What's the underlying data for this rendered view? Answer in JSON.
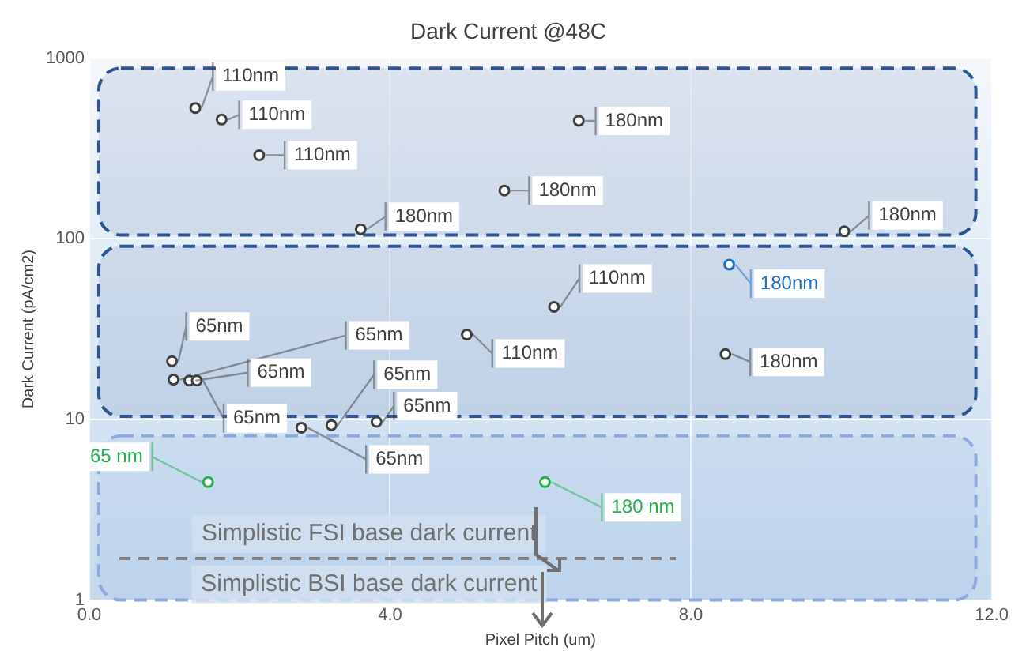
{
  "chart_data": {
    "type": "scatter",
    "title": "Dark Current @48C",
    "xlabel": "Pixel Pitch (um)",
    "ylabel": "Dark Current (pA/cm2)",
    "xlim": [
      0,
      12
    ],
    "xticks": [
      {
        "value": 0,
        "label": "0.0"
      },
      {
        "value": 4,
        "label": "4.0"
      },
      {
        "value": 8,
        "label": "8.0"
      },
      {
        "value": 12,
        "label": "12.0"
      }
    ],
    "ylim": [
      1,
      1000
    ],
    "yticks": [
      1,
      10,
      100,
      1000
    ],
    "log": "y",
    "grid": true,
    "legend": false,
    "series": [
      {
        "color": "#404040",
        "marker": "circle",
        "x": [
          1.41,
          1.76,
          2.26,
          6.18,
          5.02,
          3.61,
          6.51,
          5.52,
          10.04,
          8.46,
          1.1,
          1.12,
          1.33,
          1.43,
          2.82,
          3.22,
          3.82
        ],
        "values": [
          530,
          457,
          290,
          42,
          29.5,
          113,
          450,
          185,
          110,
          23,
          21,
          16.6,
          16.4,
          16.4,
          9,
          9.3,
          9.7
        ]
      },
      {
        "color": "#1f6fc5",
        "marker": "circle",
        "x": [
          8.51
        ],
        "values": [
          72
        ]
      },
      {
        "color": "#22b04a",
        "marker": "circle",
        "x": [
          1.58,
          6.06
        ],
        "values": [
          4.5,
          4.5
        ]
      },
      {
        "type": "line",
        "color": "#7f7f7f",
        "line_style": "dashed",
        "x": [
          0.4,
          7.8
        ],
        "values": [
          1.7,
          1.7
        ]
      }
    ],
    "bands": [
      {
        "axis": "y",
        "from": 105,
        "to": 880,
        "color": "#2f5597"
      },
      {
        "axis": "y",
        "from": 10.4,
        "to": 91,
        "color": "#2f5597"
      },
      {
        "axis": "y",
        "from": 1,
        "to": 8.1,
        "color": "#8faadc"
      }
    ],
    "annotations": [
      {
        "text": "110nm",
        "x": 1.41,
        "y": 530
      },
      {
        "text": "110nm",
        "x": 1.76,
        "y": 457
      },
      {
        "text": "110nm",
        "x": 2.26,
        "y": 290
      },
      {
        "text": "110nm",
        "x": 6.18,
        "y": 42
      },
      {
        "text": "110nm",
        "x": 5.02,
        "y": 29.5
      },
      {
        "text": "180nm",
        "x": 3.61,
        "y": 113
      },
      {
        "text": "180nm",
        "x": 6.51,
        "y": 450
      },
      {
        "text": "180nm",
        "x": 5.52,
        "y": 185
      },
      {
        "text": "180nm",
        "x": 10.04,
        "y": 110
      },
      {
        "text": "180nm",
        "x": 8.46,
        "y": 23
      },
      {
        "text": "65nm",
        "x": 1.1,
        "y": 21
      },
      {
        "text": "65nm",
        "x": 1.12,
        "y": 16.6
      },
      {
        "text": "65nm",
        "x": 1.33,
        "y": 16.4
      },
      {
        "text": "65nm",
        "x": 1.43,
        "y": 16.4
      },
      {
        "text": "65nm",
        "x": 2.82,
        "y": 9
      },
      {
        "text": "65nm",
        "x": 3.22,
        "y": 9.3
      },
      {
        "text": "65nm",
        "x": 3.82,
        "y": 9.7
      },
      {
        "text": "180nm",
        "x": 8.51,
        "y": 72
      },
      {
        "text": "65 nm",
        "x": 1.58,
        "y": 4.5
      },
      {
        "text": "180 nm",
        "x": 6.06,
        "y": 4.5
      },
      "Simplistic FSI base dark current",
      "Simplistic BSI base dark current"
    ]
  }
}
